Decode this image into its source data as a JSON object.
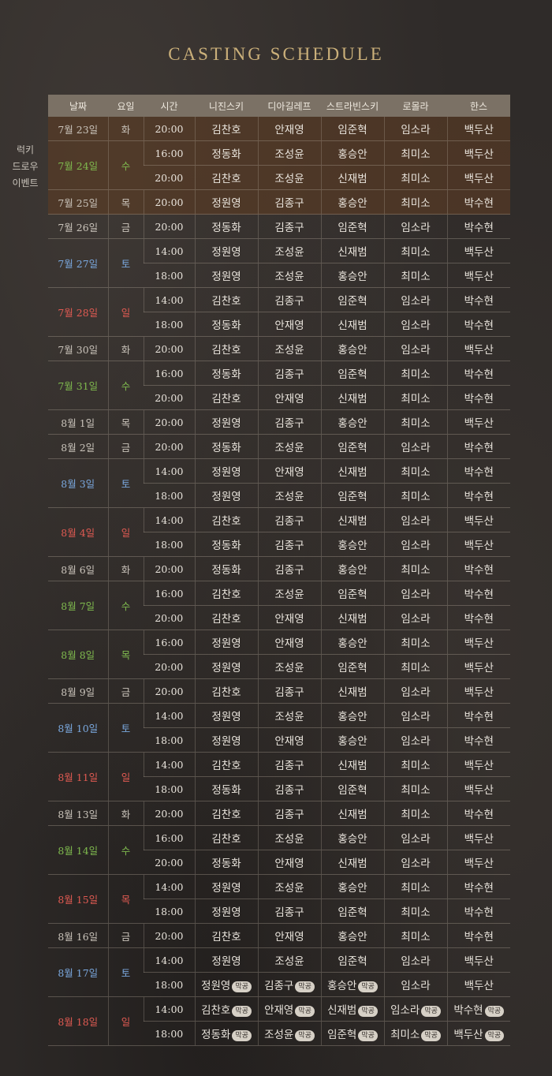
{
  "title": "CASTING SCHEDULE",
  "side_note": [
    "럭키",
    "드로우",
    "이벤트"
  ],
  "headers": [
    "날짜",
    "요일",
    "시간",
    "니진스키",
    "디아길레프",
    "스트라빈스키",
    "로몰라",
    "한스"
  ],
  "badge_label": "막공",
  "colors": {
    "saturday": "#7aa8de",
    "sunday": "#e05a52",
    "wednesday": "#7fba4e",
    "header_bg": "#7b7165",
    "title": "#cbb07a",
    "lucky_bg": "#5c3c24"
  },
  "days": [
    {
      "date": "7월 23일",
      "dow": "화",
      "color": "",
      "lucky": true,
      "shows": [
        {
          "time": "20:00",
          "cast": [
            "김찬호",
            "안재영",
            "임준혁",
            "임소라",
            "백두산"
          ]
        }
      ]
    },
    {
      "date": "7월 24일",
      "dow": "수",
      "color": "wed",
      "lucky": true,
      "shows": [
        {
          "time": "16:00",
          "cast": [
            "정동화",
            "조성윤",
            "홍승안",
            "최미소",
            "백두산"
          ]
        },
        {
          "time": "20:00",
          "cast": [
            "김찬호",
            "조성윤",
            "신재범",
            "최미소",
            "백두산"
          ]
        }
      ]
    },
    {
      "date": "7월 25일",
      "dow": "목",
      "color": "",
      "lucky": true,
      "shows": [
        {
          "time": "20:00",
          "cast": [
            "정원영",
            "김종구",
            "홍승안",
            "최미소",
            "박수현"
          ]
        }
      ]
    },
    {
      "date": "7월 26일",
      "dow": "금",
      "color": "",
      "shows": [
        {
          "time": "20:00",
          "cast": [
            "정동화",
            "김종구",
            "임준혁",
            "임소라",
            "박수현"
          ]
        }
      ]
    },
    {
      "date": "7월 27일",
      "dow": "토",
      "color": "sat",
      "shows": [
        {
          "time": "14:00",
          "cast": [
            "정원영",
            "조성윤",
            "신재범",
            "최미소",
            "백두산"
          ]
        },
        {
          "time": "18:00",
          "cast": [
            "정원영",
            "조성윤",
            "홍승안",
            "최미소",
            "백두산"
          ]
        }
      ]
    },
    {
      "date": "7월 28일",
      "dow": "일",
      "color": "sun",
      "shows": [
        {
          "time": "14:00",
          "cast": [
            "김찬호",
            "김종구",
            "임준혁",
            "임소라",
            "박수현"
          ]
        },
        {
          "time": "18:00",
          "cast": [
            "정동화",
            "안재영",
            "신재범",
            "임소라",
            "박수현"
          ]
        }
      ]
    },
    {
      "date": "7월 30일",
      "dow": "화",
      "color": "",
      "shows": [
        {
          "time": "20:00",
          "cast": [
            "김찬호",
            "조성윤",
            "홍승안",
            "임소라",
            "백두산"
          ]
        }
      ]
    },
    {
      "date": "7월 31일",
      "dow": "수",
      "color": "wed",
      "shows": [
        {
          "time": "16:00",
          "cast": [
            "정동화",
            "김종구",
            "임준혁",
            "최미소",
            "박수현"
          ]
        },
        {
          "time": "20:00",
          "cast": [
            "김찬호",
            "안재영",
            "신재범",
            "최미소",
            "박수현"
          ]
        }
      ]
    },
    {
      "date": "8월 1일",
      "dow": "목",
      "color": "",
      "shows": [
        {
          "time": "20:00",
          "cast": [
            "정원영",
            "김종구",
            "홍승안",
            "최미소",
            "백두산"
          ]
        }
      ]
    },
    {
      "date": "8월 2일",
      "dow": "금",
      "color": "",
      "shows": [
        {
          "time": "20:00",
          "cast": [
            "정동화",
            "조성윤",
            "임준혁",
            "임소라",
            "박수현"
          ]
        }
      ]
    },
    {
      "date": "8월 3일",
      "dow": "토",
      "color": "sat",
      "shows": [
        {
          "time": "14:00",
          "cast": [
            "정원영",
            "안재영",
            "신재범",
            "최미소",
            "박수현"
          ]
        },
        {
          "time": "18:00",
          "cast": [
            "정원영",
            "조성윤",
            "임준혁",
            "최미소",
            "박수현"
          ]
        }
      ]
    },
    {
      "date": "8월 4일",
      "dow": "일",
      "color": "sun",
      "shows": [
        {
          "time": "14:00",
          "cast": [
            "김찬호",
            "김종구",
            "신재범",
            "임소라",
            "백두산"
          ]
        },
        {
          "time": "18:00",
          "cast": [
            "정동화",
            "김종구",
            "홍승안",
            "임소라",
            "백두산"
          ]
        }
      ]
    },
    {
      "date": "8월 6일",
      "dow": "화",
      "color": "",
      "shows": [
        {
          "time": "20:00",
          "cast": [
            "정동화",
            "김종구",
            "홍승안",
            "최미소",
            "박수현"
          ]
        }
      ]
    },
    {
      "date": "8월 7일",
      "dow": "수",
      "color": "wed",
      "shows": [
        {
          "time": "16:00",
          "cast": [
            "김찬호",
            "조성윤",
            "임준혁",
            "임소라",
            "박수현"
          ]
        },
        {
          "time": "20:00",
          "cast": [
            "김찬호",
            "안재영",
            "신재범",
            "임소라",
            "박수현"
          ]
        }
      ]
    },
    {
      "date": "8월 8일",
      "dow": "목",
      "color": "wed",
      "shows": [
        {
          "time": "16:00",
          "cast": [
            "정원영",
            "안재영",
            "홍승안",
            "최미소",
            "백두산"
          ]
        },
        {
          "time": "20:00",
          "cast": [
            "정원영",
            "조성윤",
            "임준혁",
            "최미소",
            "백두산"
          ]
        }
      ]
    },
    {
      "date": "8월 9일",
      "dow": "금",
      "color": "",
      "shows": [
        {
          "time": "20:00",
          "cast": [
            "김찬호",
            "김종구",
            "신재범",
            "임소라",
            "백두산"
          ]
        }
      ]
    },
    {
      "date": "8월 10일",
      "dow": "토",
      "color": "sat",
      "shows": [
        {
          "time": "14:00",
          "cast": [
            "정원영",
            "조성윤",
            "홍승안",
            "임소라",
            "박수현"
          ]
        },
        {
          "time": "18:00",
          "cast": [
            "정원영",
            "안재영",
            "홍승안",
            "임소라",
            "박수현"
          ]
        }
      ]
    },
    {
      "date": "8월 11일",
      "dow": "일",
      "color": "sun",
      "shows": [
        {
          "time": "14:00",
          "cast": [
            "김찬호",
            "김종구",
            "신재범",
            "최미소",
            "백두산"
          ]
        },
        {
          "time": "18:00",
          "cast": [
            "정동화",
            "김종구",
            "임준혁",
            "최미소",
            "백두산"
          ]
        }
      ]
    },
    {
      "date": "8월 13일",
      "dow": "화",
      "color": "",
      "shows": [
        {
          "time": "20:00",
          "cast": [
            "김찬호",
            "김종구",
            "신재범",
            "최미소",
            "박수현"
          ]
        }
      ]
    },
    {
      "date": "8월 14일",
      "dow": "수",
      "color": "wed",
      "shows": [
        {
          "time": "16:00",
          "cast": [
            "김찬호",
            "조성윤",
            "홍승안",
            "임소라",
            "백두산"
          ]
        },
        {
          "time": "20:00",
          "cast": [
            "정동화",
            "안재영",
            "신재범",
            "임소라",
            "백두산"
          ]
        }
      ]
    },
    {
      "date": "8월 15일",
      "dow": "목",
      "color": "sun",
      "shows": [
        {
          "time": "14:00",
          "cast": [
            "정원영",
            "조성윤",
            "홍승안",
            "최미소",
            "박수현"
          ]
        },
        {
          "time": "18:00",
          "cast": [
            "정원영",
            "김종구",
            "임준혁",
            "최미소",
            "박수현"
          ]
        }
      ]
    },
    {
      "date": "8월 16일",
      "dow": "금",
      "color": "",
      "shows": [
        {
          "time": "20:00",
          "cast": [
            "김찬호",
            "안재영",
            "홍승안",
            "최미소",
            "박수현"
          ]
        }
      ]
    },
    {
      "date": "8월 17일",
      "dow": "토",
      "color": "sat",
      "shows": [
        {
          "time": "14:00",
          "cast": [
            "정원영",
            "조성윤",
            "임준혁",
            "임소라",
            "백두산"
          ]
        },
        {
          "time": "18:00",
          "cast": [
            "정원영",
            "김종구",
            "홍승안",
            "임소라",
            "백두산"
          ],
          "badges": [
            true,
            true,
            true,
            false,
            false
          ]
        }
      ]
    },
    {
      "date": "8월 18일",
      "dow": "일",
      "color": "sun",
      "shows": [
        {
          "time": "14:00",
          "cast": [
            "김찬호",
            "안재영",
            "신재범",
            "임소라",
            "박수현"
          ],
          "badges": [
            true,
            true,
            true,
            true,
            true
          ]
        },
        {
          "time": "18:00",
          "cast": [
            "정동화",
            "조성윤",
            "임준혁",
            "최미소",
            "백두산"
          ],
          "badges": [
            true,
            true,
            true,
            true,
            true
          ]
        }
      ]
    }
  ]
}
